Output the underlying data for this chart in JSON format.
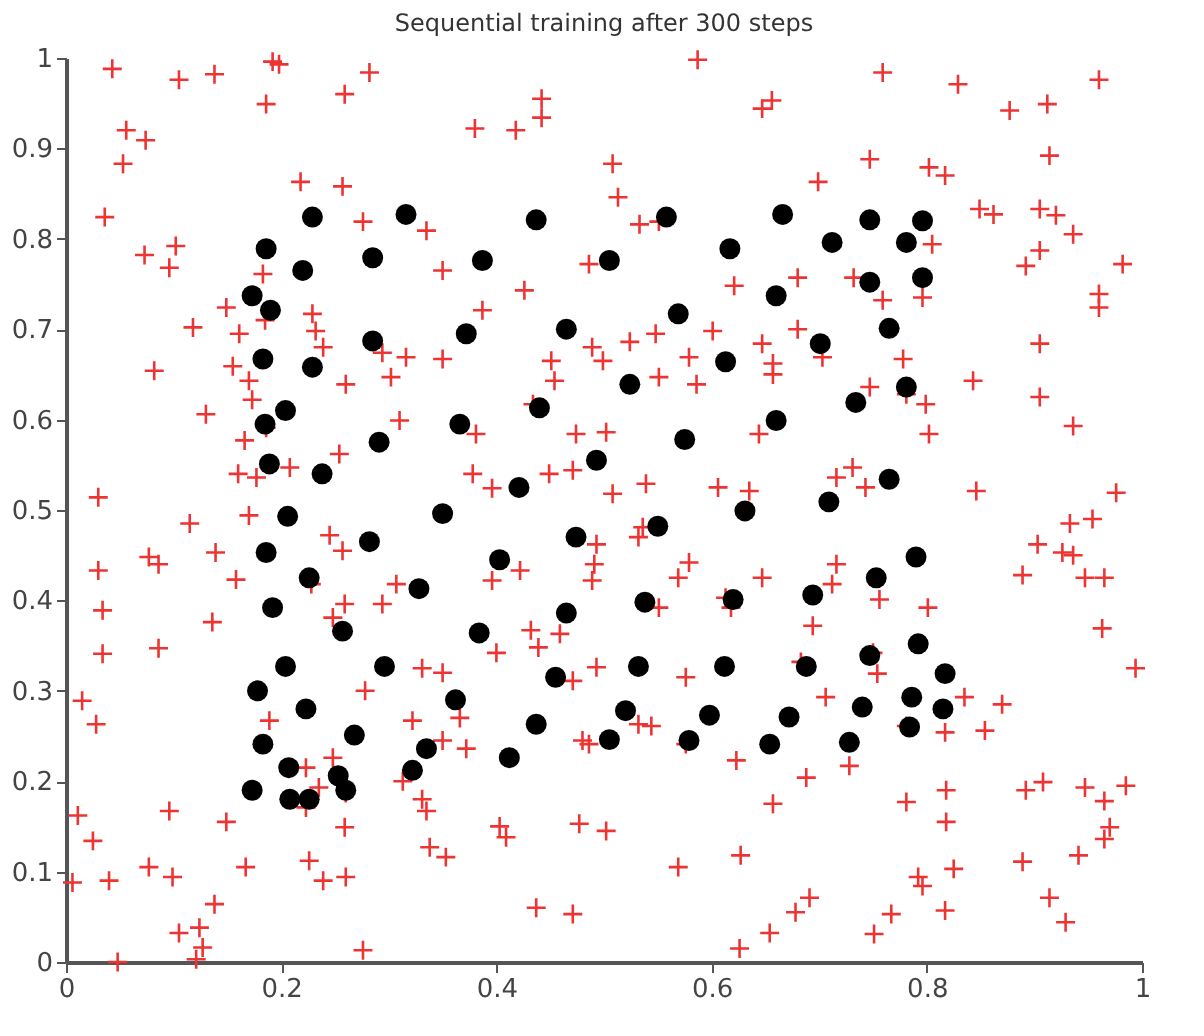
{
  "chart_data": {
    "type": "scatter",
    "title": "Sequential training after 300 steps",
    "xlim": [
      0,
      1
    ],
    "ylim": [
      0,
      1
    ],
    "xticks": [
      0,
      0.2,
      0.4,
      0.6,
      0.8,
      1
    ],
    "yticks": [
      0,
      0.1,
      0.2,
      0.3,
      0.4,
      0.5,
      0.6,
      0.7,
      0.8,
      0.9,
      1
    ],
    "grid": false,
    "series": [
      {
        "type": "scatter",
        "marker": "cross",
        "color": "#ee3333",
        "x": [
          0.043,
          0.105,
          0.138,
          0.192,
          0.198,
          0.186,
          0.259,
          0.282,
          0.056,
          0.074,
          0.053,
          0.036,
          0.073,
          0.102,
          0.096,
          0.218,
          0.257,
          0.276,
          0.335,
          0.35,
          0.426,
          0.387,
          0.38,
          0.418,
          0.442,
          0.442,
          0.082,
          0.118,
          0.13,
          0.149,
          0.155,
          0.161,
          0.17,
          0.173,
          0.183,
          0.185,
          0.229,
          0.232,
          0.239,
          0.26,
          0.294,
          0.302,
          0.316,
          0.35,
          0.31,
          0.451,
          0.454,
          0.434,
          0.474,
          0.166,
          0.186,
          0.254,
          0.16,
          0.177,
          0.208,
          0.381,
          0.378,
          0.396,
          0.449,
          0.471,
          0.03,
          0.587,
          0.759,
          0.829,
          0.96,
          0.877,
          0.912,
          0.647,
          0.656,
          0.914,
          0.747,
          0.802,
          0.817,
          0.699,
          0.508,
          0.513,
          0.533,
          0.551,
          0.849,
          0.862,
          0.905,
          0.92,
          0.936,
          0.805,
          0.892,
          0.905,
          0.982,
          0.96,
          0.96,
          0.486,
          0.621,
          0.68,
          0.732,
          0.759,
          0.796,
          0.601,
          0.68,
          0.647,
          0.524,
          0.499,
          0.489,
          0.548,
          0.579,
          0.586,
          0.551,
          0.657,
          0.657,
          0.703,
          0.778,
          0.781,
          0.799,
          0.802,
          0.905,
          0.905,
          0.843,
          0.936,
          0.747,
          0.502,
          0.644,
          0.508,
          0.539,
          0.606,
          0.635,
          0.716,
          0.731,
          0.743,
          0.846,
          0.976,
          0.115,
          0.139,
          0.158,
          0.17,
          0.077,
          0.086,
          0.03,
          0.034,
          0.034,
          0.136,
          0.086,
          0.015,
          0.028,
          0.189,
          0.245,
          0.257,
          0.228,
          0.248,
          0.259,
          0.294,
          0.307,
          0.278,
          0.322,
          0.331,
          0.35,
          0.366,
          0.35,
          0.372,
          0.223,
          0.248,
          0.235,
          0.26,
          0.313,
          0.331,
          0.335,
          0.338,
          0.353,
          0.403,
          0.409,
          0.4,
          0.396,
          0.422,
          0.432,
          0.439,
          0.459,
          0.471,
          0.48,
          0.477,
          0.437,
          0.471,
          0.011,
          0.025,
          0.096,
          0.149,
          0.167,
          0.077,
          0.099,
          0.006,
          0.04,
          0.138,
          0.124,
          0.105,
          0.127,
          0.121,
          0.048,
          0.276,
          0.226,
          0.239,
          0.26,
          0.259,
          0.223,
          0.933,
          0.954,
          0.903,
          0.926,
          0.936,
          0.889,
          0.947,
          0.965,
          0.963,
          0.994,
          0.801,
          0.756,
          0.716,
          0.712,
          0.647,
          0.613,
          0.579,
          0.569,
          0.536,
          0.532,
          0.493,
          0.491,
          0.489,
          0.551,
          0.493,
          0.576,
          0.618,
          0.694,
          0.683,
          0.75,
          0.754,
          0.706,
          0.835,
          0.87,
          0.854,
          0.817,
          0.781,
          0.544,
          0.532,
          0.486,
          0.576,
          0.623,
          0.688,
          0.728,
          0.657,
          0.781,
          0.818,
          0.818,
          0.892,
          0.908,
          0.947,
          0.965,
          0.985,
          0.97,
          0.965,
          0.941,
          0.825,
          0.792,
          0.796,
          0.889,
          0.914,
          0.929,
          0.817,
          0.767,
          0.751,
          0.691,
          0.678,
          0.654,
          0.626,
          0.627,
          0.569,
          0.502
        ],
        "values": [
          0.988,
          0.976,
          0.982,
          0.996,
          0.993,
          0.949,
          0.96,
          0.984,
          0.92,
          0.909,
          0.883,
          0.824,
          0.782,
          0.792,
          0.768,
          0.863,
          0.858,
          0.819,
          0.809,
          0.765,
          0.743,
          0.721,
          0.922,
          0.92,
          0.955,
          0.934,
          0.654,
          0.702,
          0.606,
          0.724,
          0.659,
          0.695,
          0.643,
          0.622,
          0.761,
          0.71,
          0.717,
          0.698,
          0.68,
          0.639,
          0.674,
          0.647,
          0.669,
          0.667,
          0.599,
          0.665,
          0.643,
          0.617,
          0.584,
          0.577,
          0.591,
          0.562,
          0.54,
          0.536,
          0.547,
          0.584,
          0.54,
          0.524,
          0.54,
          0.544,
          0.514,
          0.998,
          0.984,
          0.971,
          0.976,
          0.942,
          0.949,
          0.944,
          0.953,
          0.892,
          0.888,
          0.879,
          0.87,
          0.863,
          0.883,
          0.846,
          0.816,
          0.819,
          0.833,
          0.827,
          0.833,
          0.826,
          0.805,
          0.794,
          0.77,
          0.787,
          0.772,
          0.739,
          0.724,
          0.772,
          0.748,
          0.757,
          0.757,
          0.732,
          0.735,
          0.698,
          0.7,
          0.684,
          0.686,
          0.665,
          0.68,
          0.695,
          0.669,
          0.639,
          0.647,
          0.662,
          0.65,
          0.669,
          0.667,
          0.628,
          0.617,
          0.584,
          0.684,
          0.625,
          0.643,
          0.593,
          0.636,
          0.586,
          0.584,
          0.518,
          0.529,
          0.525,
          0.521,
          0.536,
          0.547,
          0.525,
          0.521,
          0.519,
          0.485,
          0.453,
          0.423,
          0.494,
          0.448,
          0.44,
          0.433,
          0.389,
          0.341,
          0.376,
          0.347,
          0.289,
          0.263,
          0.267,
          0.472,
          0.455,
          0.418,
          0.381,
          0.396,
          0.396,
          0.418,
          0.3,
          0.267,
          0.325,
          0.32,
          0.27,
          0.245,
          0.236,
          0.215,
          0.226,
          0.193,
          0.187,
          0.2,
          0.18,
          0.167,
          0.127,
          0.116,
          0.15,
          0.138,
          0.342,
          0.422,
          0.433,
          0.367,
          0.348,
          0.363,
          0.311,
          0.245,
          0.153,
          0.06,
          0.053,
          0.162,
          0.134,
          0.167,
          0.155,
          0.105,
          0.105,
          0.094,
          0.088,
          0.09,
          0.064,
          0.038,
          0.032,
          0.016,
          0.003,
          0.0,
          0.013,
          0.112,
          0.09,
          0.094,
          0.149,
          0.171,
          0.485,
          0.49,
          0.462,
          0.453,
          0.45,
          0.428,
          0.425,
          0.425,
          0.369,
          0.325,
          0.392,
          0.401,
          0.44,
          0.418,
          0.425,
          0.403,
          0.442,
          0.425,
          0.481,
          0.47,
          0.462,
          0.44,
          0.422,
          0.392,
          0.326,
          0.315,
          0.392,
          0.372,
          0.332,
          0.342,
          0.319,
          0.293,
          0.293,
          0.285,
          0.256,
          0.254,
          0.261,
          0.261,
          0.263,
          0.241,
          0.241,
          0.223,
          0.204,
          0.217,
          0.175,
          0.177,
          0.19,
          0.155,
          0.19,
          0.199,
          0.193,
          0.178,
          0.195,
          0.149,
          0.136,
          0.118,
          0.103,
          0.094,
          0.084,
          0.111,
          0.071,
          0.044,
          0.057,
          0.053,
          0.031,
          0.071,
          0.055,
          0.032,
          0.015,
          0.118,
          0.105,
          0.145
        ]
      },
      {
        "type": "scatter",
        "marker": "circle",
        "color": "#000000",
        "x": [
          0.229,
          0.316,
          0.437,
          0.186,
          0.22,
          0.285,
          0.387,
          0.173,
          0.19,
          0.183,
          0.229,
          0.285,
          0.372,
          0.465,
          0.204,
          0.185,
          0.291,
          0.366,
          0.44,
          0.189,
          0.238,
          0.421,
          0.558,
          0.666,
          0.747,
          0.796,
          0.781,
          0.617,
          0.712,
          0.505,
          0.747,
          0.796,
          0.569,
          0.66,
          0.765,
          0.701,
          0.613,
          0.524,
          0.781,
          0.734,
          0.66,
          0.575,
          0.493,
          0.765,
          0.709,
          0.631,
          0.206,
          0.35,
          0.186,
          0.282,
          0.474,
          0.226,
          0.328,
          0.403,
          0.192,
          0.465,
          0.257,
          0.384,
          0.455,
          0.204,
          0.296,
          0.178,
          0.223,
          0.362,
          0.183,
          0.268,
          0.335,
          0.437,
          0.412,
          0.207,
          0.322,
          0.253,
          0.173,
          0.208,
          0.226,
          0.26,
          0.55,
          0.79,
          0.753,
          0.694,
          0.62,
          0.538,
          0.792,
          0.747,
          0.688,
          0.612,
          0.532,
          0.817,
          0.786,
          0.815,
          0.74,
          0.672,
          0.598,
          0.52,
          0.784,
          0.728,
          0.654,
          0.579,
          0.505
        ],
        "values": [
          0.824,
          0.827,
          0.821,
          0.789,
          0.765,
          0.779,
          0.776,
          0.737,
          0.721,
          0.667,
          0.658,
          0.687,
          0.695,
          0.7,
          0.61,
          0.595,
          0.575,
          0.595,
          0.613,
          0.551,
          0.54,
          0.525,
          0.824,
          0.827,
          0.821,
          0.82,
          0.796,
          0.789,
          0.796,
          0.776,
          0.752,
          0.757,
          0.717,
          0.737,
          0.701,
          0.684,
          0.664,
          0.639,
          0.636,
          0.619,
          0.599,
          0.578,
          0.555,
          0.534,
          0.509,
          0.499,
          0.493,
          0.496,
          0.453,
          0.465,
          0.47,
          0.425,
          0.413,
          0.445,
          0.392,
          0.386,
          0.366,
          0.364,
          0.315,
          0.327,
          0.327,
          0.3,
          0.28,
          0.29,
          0.241,
          0.251,
          0.236,
          0.263,
          0.226,
          0.215,
          0.212,
          0.206,
          0.19,
          0.18,
          0.18,
          0.19,
          0.482,
          0.448,
          0.425,
          0.406,
          0.401,
          0.398,
          0.352,
          0.339,
          0.327,
          0.327,
          0.327,
          0.319,
          0.293,
          0.28,
          0.282,
          0.271,
          0.273,
          0.278,
          0.26,
          0.243,
          0.241,
          0.245,
          0.246
        ]
      }
    ]
  }
}
